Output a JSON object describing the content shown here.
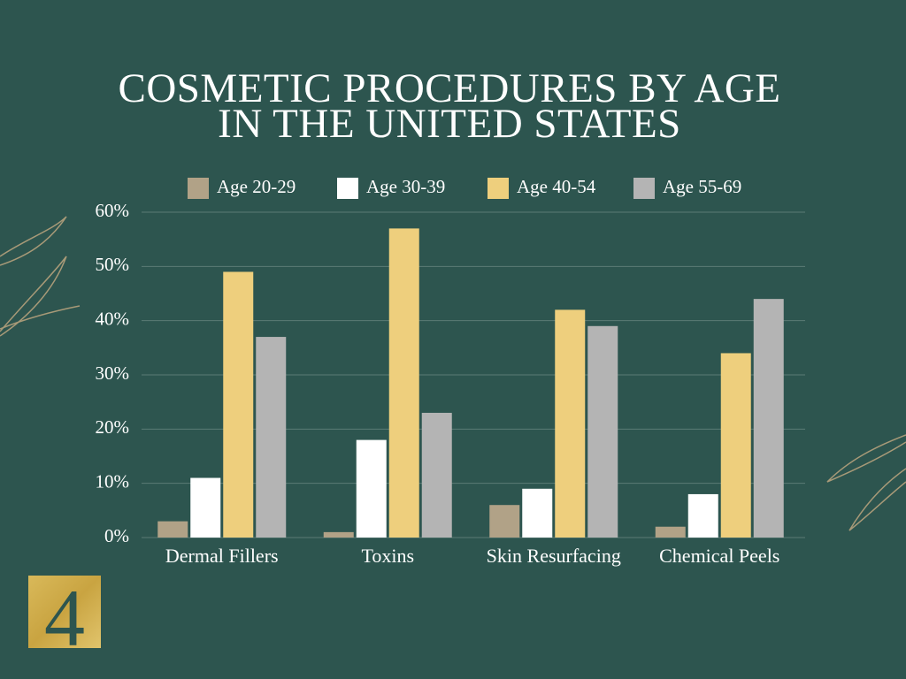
{
  "chart_data": {
    "type": "bar",
    "title": "COSMETIC PROCEDURES BY AGE IN THE UNITED STATES",
    "categories": [
      "Dermal Fillers",
      "Toxins",
      "Skin Resurfacing",
      "Chemical Peels"
    ],
    "series": [
      {
        "name": "Age 20-29",
        "color": "#b1a287",
        "values": [
          3,
          1,
          6,
          2
        ]
      },
      {
        "name": "Age 30-39",
        "color": "#ffffff",
        "values": [
          11,
          18,
          9,
          8
        ]
      },
      {
        "name": "Age 40-54",
        "color": "#eecf7d",
        "values": [
          49,
          57,
          42,
          34
        ]
      },
      {
        "name": "Age 55-69",
        "color": "#b4b4b4",
        "values": [
          37,
          23,
          39,
          44
        ]
      }
    ],
    "ylim": [
      0,
      60
    ],
    "yticks": [
      {
        "value": 0,
        "label": "0%"
      },
      {
        "value": 10,
        "label": "10%"
      },
      {
        "value": 20,
        "label": "20%"
      },
      {
        "value": 30,
        "label": "30%"
      },
      {
        "value": 40,
        "label": "40%"
      },
      {
        "value": 50,
        "label": "50%"
      },
      {
        "value": 60,
        "label": "60%"
      }
    ],
    "grid": true,
    "legend": "top"
  },
  "logo": "4"
}
